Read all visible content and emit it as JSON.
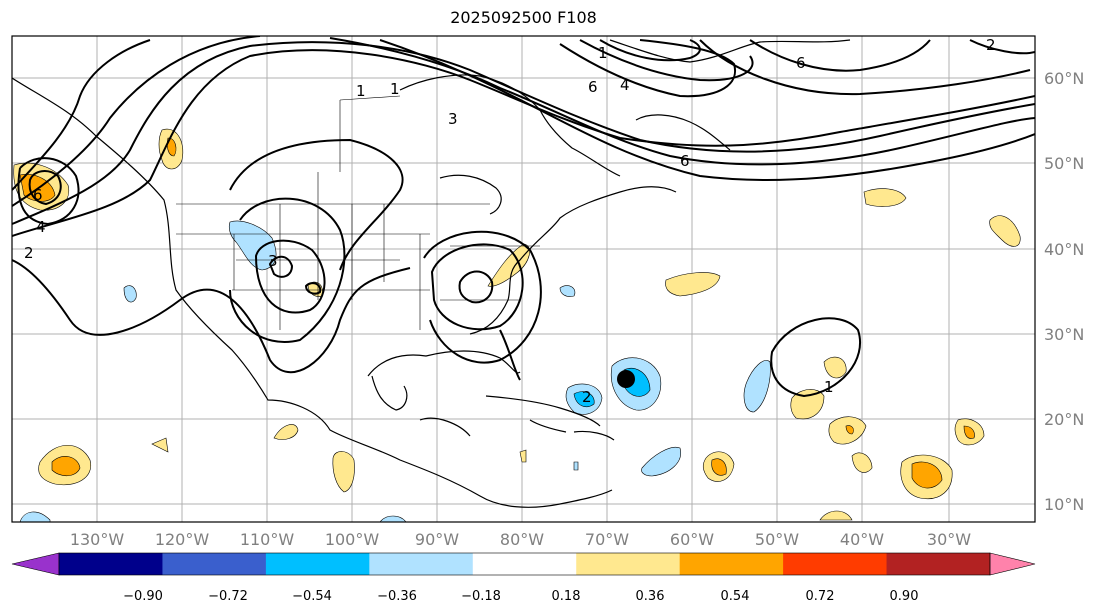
{
  "title": "2025092500 F108",
  "map": {
    "lon_labels": [
      "130°W",
      "120°W",
      "110°W",
      "100°W",
      "90°W",
      "80°W",
      "70°W",
      "60°W",
      "50°W",
      "40°W",
      "30°W"
    ],
    "lat_labels": [
      "60°N",
      "50°N",
      "40°N",
      "30°N",
      "20°N",
      "10°N"
    ],
    "contour_labels": [
      "6",
      "4",
      "2",
      "1",
      "1",
      "1",
      "2",
      "3",
      "4",
      "6",
      "6",
      "6",
      "1",
      "3",
      "2"
    ],
    "marker": "black-dot"
  },
  "colorbar": {
    "ticks": [
      "−0.90",
      "−0.72",
      "−0.54",
      "−0.36",
      "−0.18",
      "0.18",
      "0.36",
      "0.54",
      "0.72",
      "0.90"
    ],
    "colors": [
      "#9932cc",
      "#00008b",
      "#3a5fcd",
      "#00bfff",
      "#b0e2ff",
      "#ffffff",
      "#ffe88f",
      "#ffa500",
      "#ff3c00",
      "#b22222",
      "#ff82ab"
    ]
  }
}
